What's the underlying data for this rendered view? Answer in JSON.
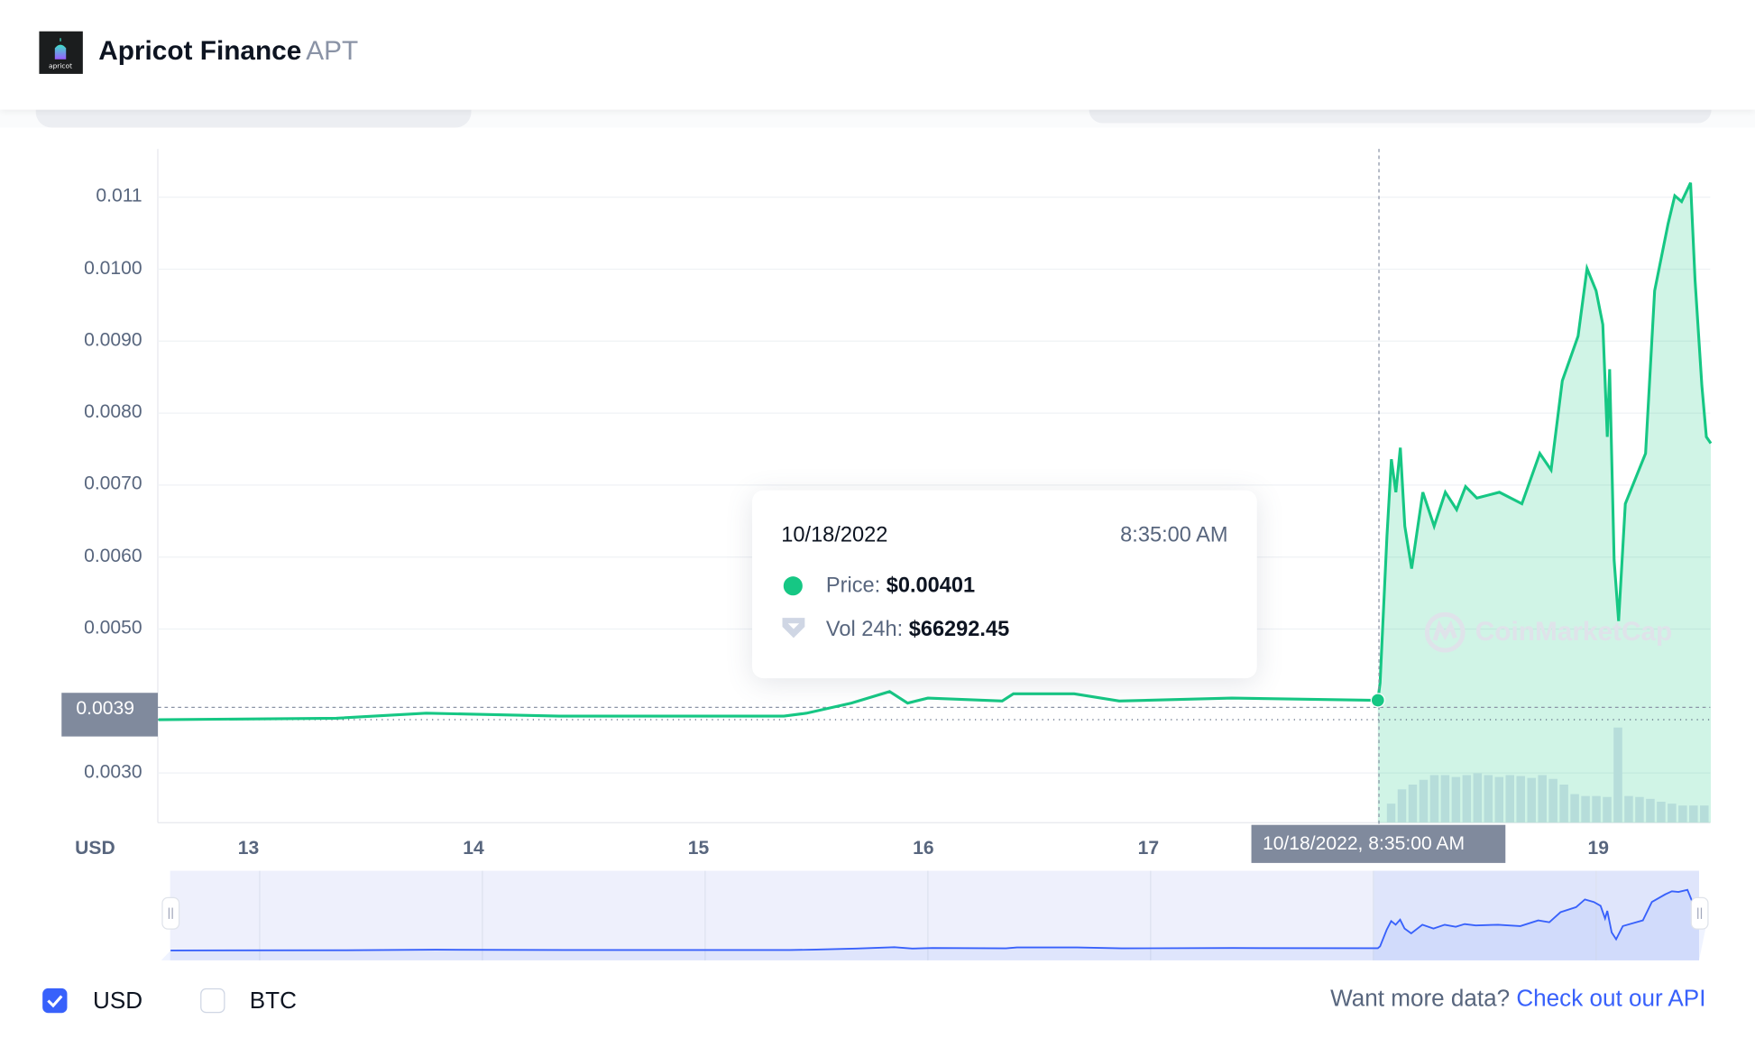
{
  "header": {
    "name": "Apricot Finance",
    "symbol": "APT",
    "logo_text": "apricot"
  },
  "tooltip": {
    "date": "10/18/2022",
    "time": "8:35:00 AM",
    "price_label": "Price:",
    "price_value": "$0.00401",
    "vol_label": "Vol 24h:",
    "vol_value": "$66292.45"
  },
  "crosshair": {
    "y_label": "0.0039",
    "x_label": "10/18/2022, 8:35:00 AM"
  },
  "watermark": "CoinMarketCap",
  "currency_toggles": [
    {
      "label": "USD",
      "checked": true
    },
    {
      "label": "BTC",
      "checked": false
    }
  ],
  "footer": {
    "text": "Want more data?",
    "link": "Check out our API"
  },
  "colors": {
    "price_line": "#16c784",
    "navigator_line": "#3861fb",
    "link": "#3861fb",
    "check": "#3861fb"
  },
  "chart_data": {
    "type": "area",
    "ylabel": "USD",
    "ylim": [
      0.00265,
      0.0115
    ],
    "xlim": [
      12.6,
      19.5
    ],
    "y_ticks": [
      "0.011",
      "0.0100",
      "0.0090",
      "0.0080",
      "0.0070",
      "0.0060",
      "0.0050",
      "0.0030"
    ],
    "y_tick_values": [
      0.011,
      0.01,
      0.009,
      0.008,
      0.007,
      0.006,
      0.005,
      0.003
    ],
    "x_ticks": [
      "13",
      "14",
      "15",
      "16",
      "17",
      "19"
    ],
    "x_tick_values": [
      13,
      14,
      15,
      16,
      17,
      19
    ],
    "navigator_ticks": [
      "13",
      "14",
      "15",
      "16",
      "17",
      "18",
      "19"
    ],
    "navigator_tick_values": [
      13,
      14,
      15,
      16,
      17,
      18,
      19
    ],
    "series": [
      {
        "name": "Price",
        "points": [
          [
            12.6,
            0.00374
          ],
          [
            13.39,
            0.00376
          ],
          [
            13.79,
            0.00383
          ],
          [
            14.38,
            0.00379
          ],
          [
            15.38,
            0.00379
          ],
          [
            15.48,
            0.00383
          ],
          [
            15.68,
            0.00397
          ],
          [
            15.85,
            0.00413
          ],
          [
            15.93,
            0.00397
          ],
          [
            16.02,
            0.00404
          ],
          [
            16.35,
            0.004
          ],
          [
            16.4,
            0.0041
          ],
          [
            16.67,
            0.0041
          ],
          [
            16.87,
            0.004
          ],
          [
            17.37,
            0.00404
          ],
          [
            18.02,
            0.00401
          ],
          [
            18.03,
            0.00425
          ],
          [
            18.06,
            0.00628
          ],
          [
            18.08,
            0.00736
          ],
          [
            18.1,
            0.0069
          ],
          [
            18.12,
            0.00752
          ],
          [
            18.14,
            0.00643
          ],
          [
            18.17,
            0.00584
          ],
          [
            18.22,
            0.0069
          ],
          [
            18.27,
            0.00643
          ],
          [
            18.32,
            0.0069
          ],
          [
            18.37,
            0.00666
          ],
          [
            18.41,
            0.00698
          ],
          [
            18.46,
            0.00682
          ],
          [
            18.56,
            0.0069
          ],
          [
            18.66,
            0.00674
          ],
          [
            18.74,
            0.00744
          ],
          [
            18.79,
            0.00721
          ],
          [
            18.84,
            0.00845
          ],
          [
            18.91,
            0.00907
          ],
          [
            18.95,
            0.01001
          ],
          [
            18.99,
            0.0097
          ],
          [
            19.02,
            0.00923
          ],
          [
            19.04,
            0.00767
          ],
          [
            19.05,
            0.00861
          ],
          [
            19.07,
            0.00596
          ],
          [
            19.09,
            0.00511
          ],
          [
            19.12,
            0.00674
          ],
          [
            19.17,
            0.00713
          ],
          [
            19.21,
            0.00744
          ],
          [
            19.25,
            0.0097
          ],
          [
            19.31,
            0.01063
          ],
          [
            19.34,
            0.01102
          ],
          [
            19.37,
            0.01094
          ],
          [
            19.41,
            0.0112
          ],
          [
            19.43,
            0.00985
          ],
          [
            19.46,
            0.00838
          ],
          [
            19.48,
            0.00767
          ],
          [
            19.5,
            0.00758
          ]
        ]
      }
    ],
    "volume_relative": [
      0.2,
      0.35,
      0.4,
      0.45,
      0.5,
      0.5,
      0.48,
      0.5,
      0.52,
      0.5,
      0.48,
      0.5,
      0.49,
      0.47,
      0.5,
      0.46,
      0.4,
      0.3,
      0.28,
      0.28,
      0.27,
      1.0,
      0.28,
      0.27,
      0.25,
      0.22,
      0.2,
      0.18,
      0.18,
      0.18
    ],
    "volume_xrange": [
      18.06,
      19.5
    ],
    "selected_point": {
      "x": 18.02,
      "y": 0.00401
    }
  }
}
